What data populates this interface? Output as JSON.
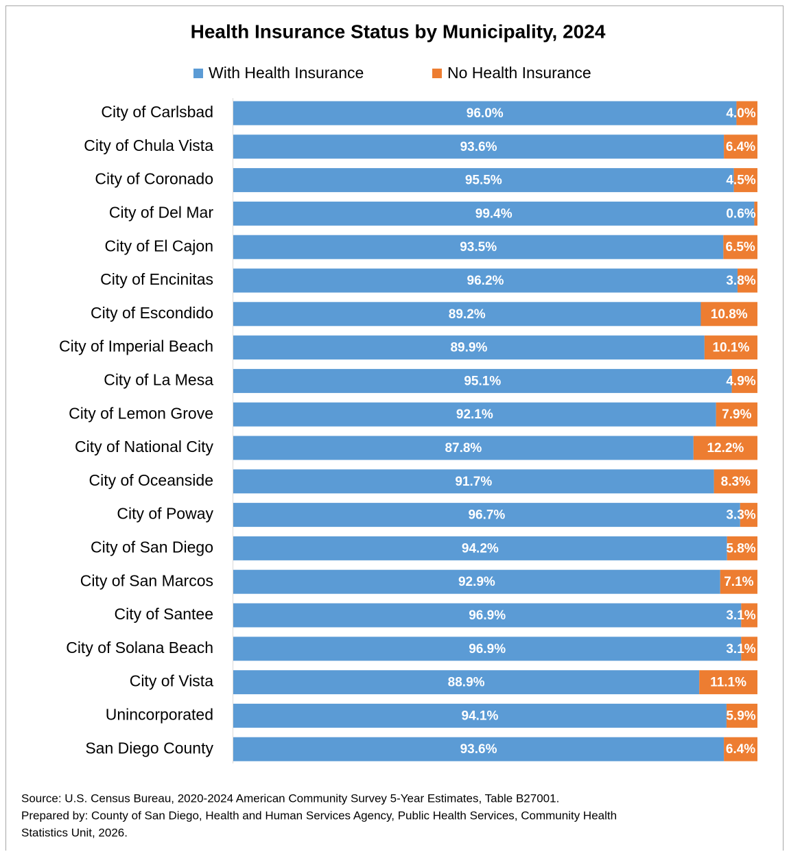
{
  "chart_data": {
    "type": "stacked-barh",
    "title": "Health Insurance Status by Municipality, 2024",
    "categories": [
      "City of Carlsbad",
      "City of Chula Vista",
      "City of Coronado",
      "City of Del Mar",
      "City of El Cajon",
      "City of Encinitas",
      "City of Escondido",
      "City of Imperial Beach",
      "City of La Mesa",
      "City of Lemon Grove",
      "City of National City",
      "City of Oceanside",
      "City of Poway",
      "City of San Diego",
      "City of San Marcos",
      "City of Santee",
      "City of Solana Beach",
      "City of Vista",
      "Unincorporated",
      "San Diego County"
    ],
    "series": [
      {
        "name": "With Health Insurance",
        "color": "#5b9bd5",
        "values": [
          96.0,
          93.6,
          95.5,
          99.4,
          93.5,
          96.2,
          89.2,
          89.9,
          95.1,
          92.1,
          87.8,
          91.7,
          96.7,
          94.2,
          92.9,
          96.9,
          96.9,
          88.9,
          94.1,
          93.6
        ],
        "value_labels": [
          "96.0%",
          "93.6%",
          "95.5%",
          "99.4%",
          "93.5%",
          "96.2%",
          "89.2%",
          "89.9%",
          "95.1%",
          "92.1%",
          "87.8%",
          "91.7%",
          "96.7%",
          "94.2%",
          "92.9%",
          "96.9%",
          "96.9%",
          "88.9%",
          "94.1%",
          "93.6%"
        ]
      },
      {
        "name": "No Health Insurance",
        "color": "#ed7d31",
        "values": [
          4.0,
          6.4,
          4.5,
          0.6,
          6.5,
          3.8,
          10.8,
          10.1,
          4.9,
          7.9,
          12.2,
          8.3,
          3.3,
          5.8,
          7.1,
          3.1,
          3.1,
          11.1,
          5.9,
          6.4
        ],
        "value_labels": [
          "4.0%",
          "6.4%",
          "4.5%",
          "0.6%",
          "6.5%",
          "3.8%",
          "10.8%",
          "10.1%",
          "4.9%",
          "7.9%",
          "12.2%",
          "8.3%",
          "3.3%",
          "5.8%",
          "7.1%",
          "3.1%",
          "3.1%",
          "11.1%",
          "5.9%",
          "6.4%"
        ]
      }
    ],
    "xlim": [
      0,
      100
    ],
    "legend": "top",
    "source": [
      "Source: U.S. Census Bureau, 2020-2024 American Community Survey 5-Year Estimates, Table B27001.",
      "Prepared by: County of San Diego, Health and Human Services Agency, Public Health Services, Community Health",
      "Statistics Unit, 2026."
    ]
  }
}
